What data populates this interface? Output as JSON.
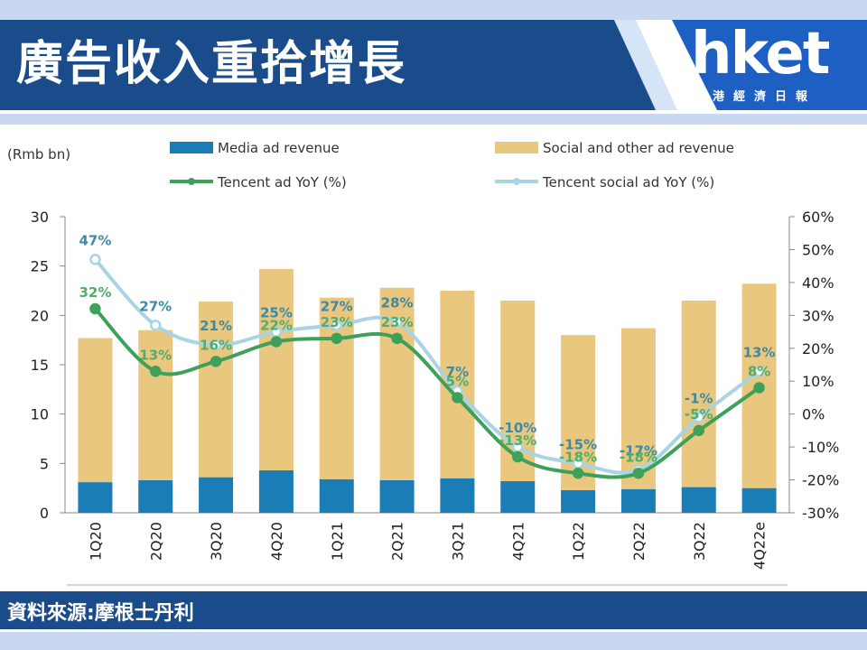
{
  "header": {
    "title": "廣告收入重拾增長",
    "logo_text": "hket",
    "logo_subtitle": "香港經濟日報"
  },
  "footer": {
    "source": "資料來源:摩根士丹利"
  },
  "colors": {
    "media": "#1b7db5",
    "social": "#e9c77e",
    "tencent_line": "#3fa05a",
    "social_line": "#a8d4e4",
    "header_band": "#1a4c8c"
  },
  "chart_data": {
    "type": "bar",
    "unit_label": "(Rmb bn)",
    "categories": [
      "1Q20",
      "2Q20",
      "3Q20",
      "4Q20",
      "1Q21",
      "2Q21",
      "3Q21",
      "4Q21",
      "1Q22",
      "2Q22",
      "3Q22",
      "4Q22e"
    ],
    "stacked": true,
    "series": [
      {
        "name": "Media ad revenue",
        "type": "bar",
        "axis": "left",
        "values": [
          3.1,
          3.3,
          3.6,
          4.3,
          3.4,
          3.3,
          3.5,
          3.2,
          2.3,
          2.4,
          2.6,
          2.5
        ]
      },
      {
        "name": "Social and other ad revenue",
        "type": "bar",
        "axis": "left",
        "values": [
          14.6,
          15.2,
          17.8,
          20.4,
          18.4,
          19.5,
          19.0,
          18.3,
          15.7,
          16.3,
          18.9,
          20.7
        ]
      },
      {
        "name": "Tencent ad YoY (%)",
        "type": "line",
        "axis": "right",
        "values": [
          32,
          13,
          16,
          22,
          23,
          23,
          5,
          -13,
          -18,
          -18,
          -5,
          8
        ],
        "labels": [
          "32%",
          "13%",
          "16%",
          "22%",
          "23%",
          "23%",
          "5%",
          "-13%",
          "-18%",
          "-18%",
          "-5%",
          "8%"
        ]
      },
      {
        "name": "Tencent social ad YoY (%)",
        "type": "line",
        "axis": "right",
        "values": [
          47,
          27,
          21,
          25,
          27,
          28,
          7,
          -10,
          -15,
          -17,
          -1,
          13
        ],
        "labels": [
          "47%",
          "27%",
          "21%",
          "25%",
          "27%",
          "28%",
          "7%",
          "-10%",
          "-15%",
          "-17%",
          "-1%",
          "13%"
        ]
      }
    ],
    "ylim_left": [
      0,
      30
    ],
    "yticks_left": [
      "0",
      "5",
      "10",
      "15",
      "20",
      "25",
      "30"
    ],
    "ylim_right": [
      -30,
      60
    ],
    "yticks_right": [
      "-30%",
      "-20%",
      "-10%",
      "0%",
      "10%",
      "20%",
      "30%",
      "40%",
      "50%",
      "60%"
    ],
    "grid": false,
    "legend_position": "top"
  }
}
